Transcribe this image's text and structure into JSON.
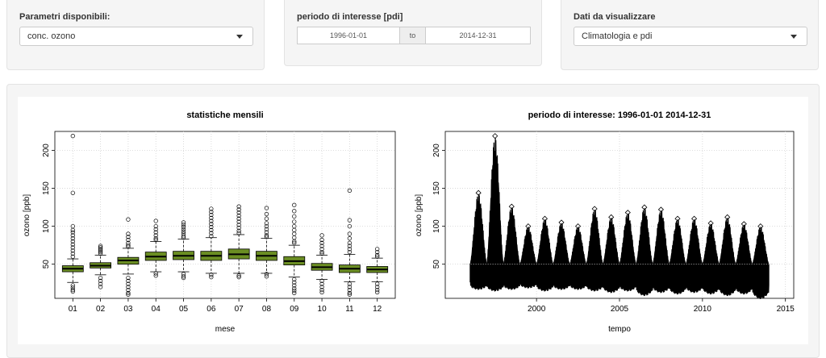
{
  "controls": {
    "parametri": {
      "label": "Parametri disponibili:",
      "value": "conc. ozono"
    },
    "periodo": {
      "label": "periodo di interesse [pdi]",
      "start": "1996-01-01",
      "sep": "to",
      "end": "2014-12-31"
    },
    "dati": {
      "label": "Dati da visualizzare",
      "value": "Climatologia e pdi"
    }
  },
  "chart_data": [
    {
      "type": "boxplot",
      "title": "statistiche mensili",
      "xlabel": "mese",
      "ylabel": "ozono [ppb]",
      "ylim": [
        5,
        225
      ],
      "yticks": [
        50,
        100,
        150,
        200
      ],
      "color": "#6b8e23",
      "categories": [
        "01",
        "02",
        "03",
        "04",
        "05",
        "06",
        "07",
        "08",
        "09",
        "10",
        "11",
        "12"
      ],
      "boxes": [
        {
          "q1": 40,
          "median": 44,
          "q3": 48,
          "whisker_low": 26,
          "whisker_high": 57,
          "outliers": [
            219,
            144,
            100,
            95,
            92,
            88,
            84,
            80,
            76,
            72,
            68,
            64,
            60,
            22,
            19,
            16,
            14
          ]
        },
        {
          "q1": 45,
          "median": 48,
          "q3": 52,
          "whisker_low": 36,
          "whisker_high": 62,
          "outliers": [
            74,
            72,
            70,
            68,
            66,
            64,
            32,
            28,
            24,
            20
          ]
        },
        {
          "q1": 50,
          "median": 55,
          "q3": 59,
          "whisker_low": 37,
          "whisker_high": 71,
          "outliers": [
            109,
            90,
            86,
            82,
            78,
            75,
            73,
            32,
            28,
            24,
            20,
            16,
            12,
            10
          ]
        },
        {
          "q1": 55,
          "median": 60,
          "q3": 66,
          "whisker_low": 40,
          "whisker_high": 80,
          "outliers": [
            107,
            100,
            96,
            92,
            88,
            84,
            82,
            38,
            35
          ]
        },
        {
          "q1": 56,
          "median": 61,
          "q3": 67,
          "whisker_low": 40,
          "whisker_high": 83,
          "outliers": [
            105,
            102,
            99,
            96,
            93,
            90,
            87,
            85,
            37,
            34,
            32
          ]
        },
        {
          "q1": 55,
          "median": 61,
          "q3": 67,
          "whisker_low": 38,
          "whisker_high": 85,
          "outliers": [
            123,
            119,
            115,
            111,
            107,
            103,
            99,
            95,
            91,
            87,
            36,
            33
          ]
        },
        {
          "q1": 57,
          "median": 63,
          "q3": 70,
          "whisker_low": 38,
          "whisker_high": 89,
          "outliers": [
            126,
            122,
            118,
            114,
            110,
            106,
            102,
            98,
            94,
            91,
            35,
            33
          ]
        },
        {
          "q1": 55,
          "median": 61,
          "q3": 67,
          "whisker_low": 38,
          "whisker_high": 84,
          "outliers": [
            124,
            116,
            110,
            104,
            100,
            96,
            92,
            88,
            86,
            37,
            34
          ]
        },
        {
          "q1": 49,
          "median": 54,
          "q3": 60,
          "whisker_low": 33,
          "whisker_high": 75,
          "outliers": [
            128,
            120,
            113,
            106,
            100,
            95,
            90,
            85,
            80,
            78,
            30,
            26,
            22,
            18,
            15,
            12
          ]
        },
        {
          "q1": 42,
          "median": 46,
          "q3": 51,
          "whisker_low": 30,
          "whisker_high": 62,
          "outliers": [
            88,
            82,
            78,
            74,
            70,
            66,
            64,
            28,
            24,
            20,
            16,
            13
          ]
        },
        {
          "q1": 39,
          "median": 44,
          "q3": 49,
          "whisker_low": 27,
          "whisker_high": 63,
          "outliers": [
            147,
            108,
            100,
            90,
            84,
            78,
            74,
            70,
            66,
            24,
            20,
            16,
            12,
            10
          ]
        },
        {
          "q1": 39,
          "median": 43,
          "q3": 47,
          "whisker_low": 27,
          "whisker_high": 58,
          "outliers": [
            70,
            66,
            62,
            60,
            24,
            20,
            16,
            13
          ]
        }
      ]
    },
    {
      "type": "line",
      "title": "periodo di interesse: 1996-01-01 2014-12-31",
      "xlabel": "tempo",
      "ylabel": "ozono [ppb]",
      "xlim": [
        1994.5,
        2015.5
      ],
      "ylim": [
        5,
        225
      ],
      "xticks": [
        2000,
        2005,
        2010,
        2015
      ],
      "yticks": [
        50,
        100,
        150,
        200
      ],
      "reference_line": 50,
      "series": [
        {
          "year": 1996,
          "low": 22,
          "high": 144,
          "median": 50
        },
        {
          "year": 1997,
          "low": 20,
          "high": 219,
          "median": 50
        },
        {
          "year": 1998,
          "low": 22,
          "high": 126,
          "median": 50
        },
        {
          "year": 1999,
          "low": 24,
          "high": 100,
          "median": 50
        },
        {
          "year": 2000,
          "low": 20,
          "high": 110,
          "median": 50
        },
        {
          "year": 2001,
          "low": 22,
          "high": 105,
          "median": 50
        },
        {
          "year": 2002,
          "low": 22,
          "high": 100,
          "median": 50
        },
        {
          "year": 2003,
          "low": 20,
          "high": 123,
          "median": 50
        },
        {
          "year": 2004,
          "low": 18,
          "high": 112,
          "median": 50
        },
        {
          "year": 2005,
          "low": 20,
          "high": 118,
          "median": 50
        },
        {
          "year": 2006,
          "low": 14,
          "high": 125,
          "median": 50
        },
        {
          "year": 2007,
          "low": 18,
          "high": 122,
          "median": 50
        },
        {
          "year": 2008,
          "low": 16,
          "high": 110,
          "median": 50
        },
        {
          "year": 2009,
          "low": 18,
          "high": 110,
          "median": 50
        },
        {
          "year": 2010,
          "low": 16,
          "high": 104,
          "median": 50
        },
        {
          "year": 2011,
          "low": 14,
          "high": 112,
          "median": 50
        },
        {
          "year": 2012,
          "low": 16,
          "high": 103,
          "median": 50
        },
        {
          "year": 2013,
          "low": 10,
          "high": 100,
          "median": 50
        }
      ]
    }
  ]
}
